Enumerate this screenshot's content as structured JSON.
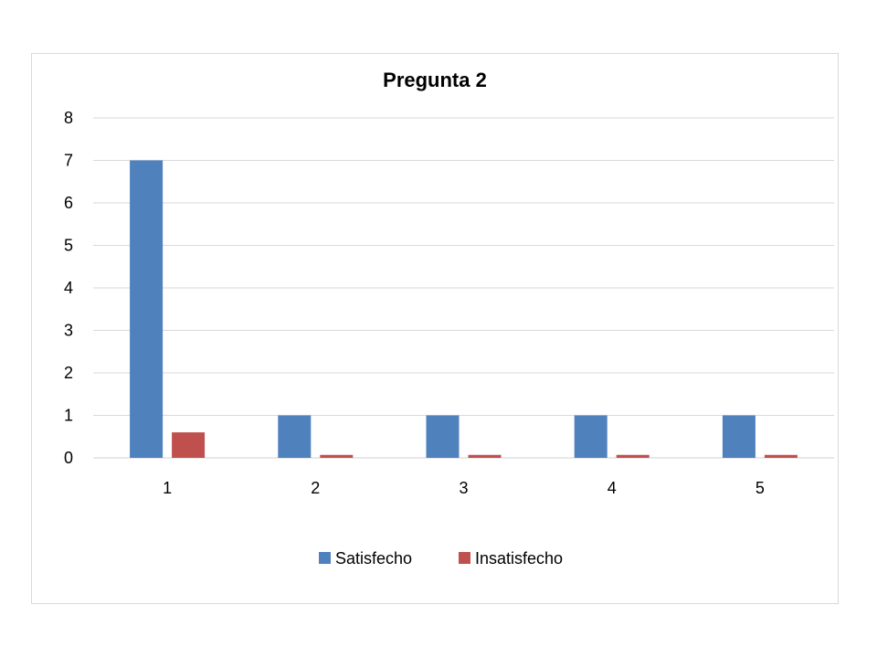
{
  "chart_data": {
    "type": "bar",
    "title": "Pregunta 2",
    "xlabel": "",
    "ylabel": "",
    "categories": [
      "1",
      "2",
      "3",
      "4",
      "5"
    ],
    "series": [
      {
        "name": "Satisfecho",
        "values": [
          7,
          1,
          1,
          1,
          1
        ],
        "color": "#4f81bd"
      },
      {
        "name": "Insatisfecho",
        "values": [
          0.6,
          0.07,
          0.07,
          0.07,
          0.07
        ],
        "color": "#c0504d"
      }
    ],
    "ylim": [
      0,
      8
    ],
    "yticks": [
      "0",
      "1",
      "2",
      "3",
      "4",
      "5",
      "6",
      "7",
      "8"
    ],
    "grid": true,
    "legend_position": "bottom"
  }
}
